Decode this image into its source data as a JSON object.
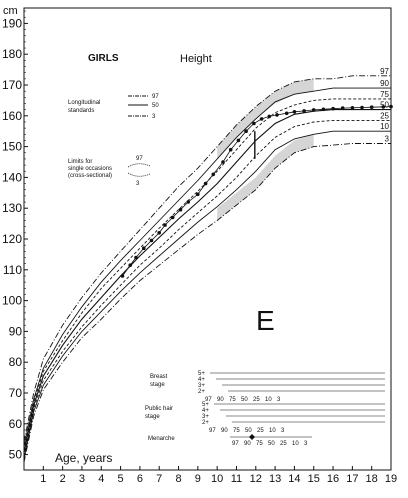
{
  "chart_data": {
    "type": "line",
    "title": "Height",
    "subtitle": "GIRLS",
    "big_letter": "E",
    "y_unit": "cm",
    "xlabel": "Age, years",
    "xlim": [
      0,
      19
    ],
    "ylim": [
      45,
      195
    ],
    "x_ticks": [
      1,
      2,
      3,
      4,
      5,
      6,
      7,
      8,
      9,
      10,
      11,
      12,
      13,
      14,
      15,
      16,
      17,
      18,
      19
    ],
    "y_ticks": [
      50,
      60,
      70,
      80,
      90,
      100,
      110,
      120,
      130,
      140,
      150,
      160,
      170,
      180,
      190
    ],
    "grid": false,
    "legend": {
      "longitudinal_label": "Longitudinal standards",
      "longitudinal_lines": [
        "97",
        "50",
        "3"
      ],
      "limits_label": "Limits for single occasions (cross-sectional)",
      "limits_marks": [
        "97",
        "3"
      ]
    },
    "centile_labels": [
      "97",
      "90",
      "75",
      "50",
      "25",
      "10",
      "3"
    ],
    "series": [
      {
        "name": "97",
        "x": [
          0,
          0.5,
          1,
          2,
          3,
          4,
          5,
          6,
          7,
          8,
          9,
          10,
          11,
          12,
          13,
          14,
          15,
          16,
          17,
          19
        ],
        "y": [
          54,
          70,
          81,
          92,
          101,
          109,
          116,
          123,
          130,
          137,
          143,
          150,
          157,
          163,
          168,
          171,
          172,
          172,
          173,
          173
        ]
      },
      {
        "name": "90",
        "x": [
          0,
          0.5,
          1,
          2,
          3,
          4,
          5,
          6,
          7,
          8,
          9,
          10,
          11,
          12,
          13,
          14,
          15,
          16,
          17,
          19
        ],
        "y": [
          52.5,
          68,
          78,
          89,
          98,
          106,
          113,
          119.5,
          126,
          132.5,
          139,
          146,
          153,
          159,
          164.5,
          167,
          168,
          169,
          169,
          169
        ]
      },
      {
        "name": "75",
        "x": [
          0,
          0.5,
          1,
          2,
          3,
          4,
          5,
          6,
          7,
          8,
          9,
          10,
          11,
          12,
          13,
          14,
          15,
          16,
          17,
          19
        ],
        "y": [
          51.5,
          67,
          77,
          87,
          96,
          104,
          110.5,
          117,
          123.5,
          129.5,
          135.5,
          142,
          149,
          156,
          161,
          163.5,
          165,
          165.5,
          165.5,
          165.5
        ]
      },
      {
        "name": "50",
        "x": [
          0,
          0.5,
          1,
          2,
          3,
          4,
          5,
          6,
          7,
          8,
          9,
          10,
          11,
          12,
          13,
          14,
          15,
          16,
          17,
          19
        ],
        "y": [
          50.5,
          66,
          75.5,
          85.5,
          94,
          101,
          108,
          114.5,
          120.5,
          126.5,
          132,
          138,
          145,
          152,
          157.5,
          160.5,
          161.5,
          162,
          162,
          162
        ]
      },
      {
        "name": "25",
        "x": [
          0,
          0.5,
          1,
          2,
          3,
          4,
          5,
          6,
          7,
          8,
          9,
          10,
          11,
          12,
          13,
          14,
          15,
          16,
          17,
          19
        ],
        "y": [
          49.5,
          65,
          74,
          83.5,
          91.5,
          98.5,
          105,
          111.5,
          117,
          123,
          128.5,
          134,
          140,
          147,
          153,
          156.5,
          158,
          158.5,
          158.5,
          158.5
        ]
      },
      {
        "name": "10",
        "x": [
          0,
          0.5,
          1,
          2,
          3,
          4,
          5,
          6,
          7,
          8,
          9,
          10,
          11,
          12,
          13,
          14,
          15,
          16,
          17,
          19
        ],
        "y": [
          48.5,
          64,
          72.5,
          82,
          90,
          96.5,
          103,
          109,
          114.5,
          120,
          125.5,
          130.5,
          136,
          142,
          149,
          152.5,
          154,
          155,
          155,
          155
        ]
      },
      {
        "name": "3",
        "x": [
          0,
          0.5,
          1,
          2,
          3,
          4,
          5,
          6,
          7,
          8,
          9,
          10,
          11,
          12,
          13,
          14,
          15,
          16,
          17,
          19
        ],
        "y": [
          47.5,
          62.5,
          71,
          80,
          88,
          94,
          100.5,
          106.5,
          111.5,
          116.5,
          121.5,
          126,
          131,
          136,
          143,
          148,
          150,
          150.5,
          151,
          151
        ]
      },
      {
        "name": "patient",
        "x": [
          5.1,
          5.5,
          5.8,
          6.2,
          6.6,
          7.0,
          7.3,
          7.7,
          8.1,
          8.5,
          9.0,
          9.4,
          9.8,
          10.3,
          10.7,
          11.1,
          11.5,
          11.9,
          12.3,
          12.7,
          13.1,
          13.6,
          14.0,
          14.5,
          15.0,
          15.5,
          16.0,
          16.5,
          17.0,
          17.5,
          18.0,
          18.6,
          19.0
        ],
        "y": [
          108,
          111.5,
          114,
          117,
          119.5,
          122,
          124.5,
          127,
          129.5,
          132,
          134.5,
          138,
          141,
          145,
          149,
          152,
          155,
          157.5,
          159,
          159.8,
          160.3,
          160.8,
          161.3,
          161.6,
          161.9,
          162.1,
          162.3,
          162.5,
          162.6,
          162.7,
          162.8,
          162.9,
          163
        ]
      }
    ],
    "maturity": {
      "breast_label": "Breast stage",
      "pubic_label": "Pubic hair stage",
      "menarche_label": "Menarche",
      "stage_labels": [
        "5+",
        "4+",
        "3+",
        "2+"
      ],
      "centile_ticks": [
        "97",
        "90",
        "75",
        "50",
        "25",
        "10",
        "3"
      ]
    }
  }
}
